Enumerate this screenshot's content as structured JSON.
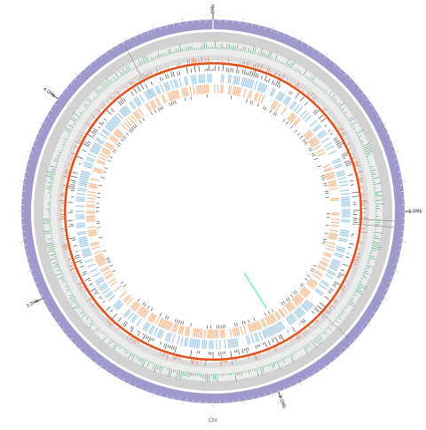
{
  "chromosome_label": "Chr",
  "position_labels": [
    {
      "text": "0Mb",
      "angle_deg": 0
    },
    {
      "text": "1.0Mb",
      "angle_deg": 90
    },
    {
      "text": "2.0Mb",
      "angle_deg": 160
    },
    {
      "text": "3.0Mb",
      "angle_deg": 243
    },
    {
      "text": "4.0Mb",
      "angle_deg": 306
    }
  ],
  "colors": {
    "outer_ring": "#9e9bcc",
    "gray_ring": "#d2d2d2",
    "light_ring": "#ececec",
    "gc_skew_green": "#2e9b57",
    "gc_content_orange": "#e0501c",
    "cds_forward_blue": "#9fc9e6",
    "cds_reverse_orange": "#f7bb91",
    "rna_dark": "#333333",
    "link_line": "#5ef0a8"
  },
  "tracks": [
    "chromosome-ideogram",
    "gc-skew",
    "gc-content",
    "rna-genes",
    "cds-forward",
    "cds-reverse",
    "repeat-genes"
  ]
}
